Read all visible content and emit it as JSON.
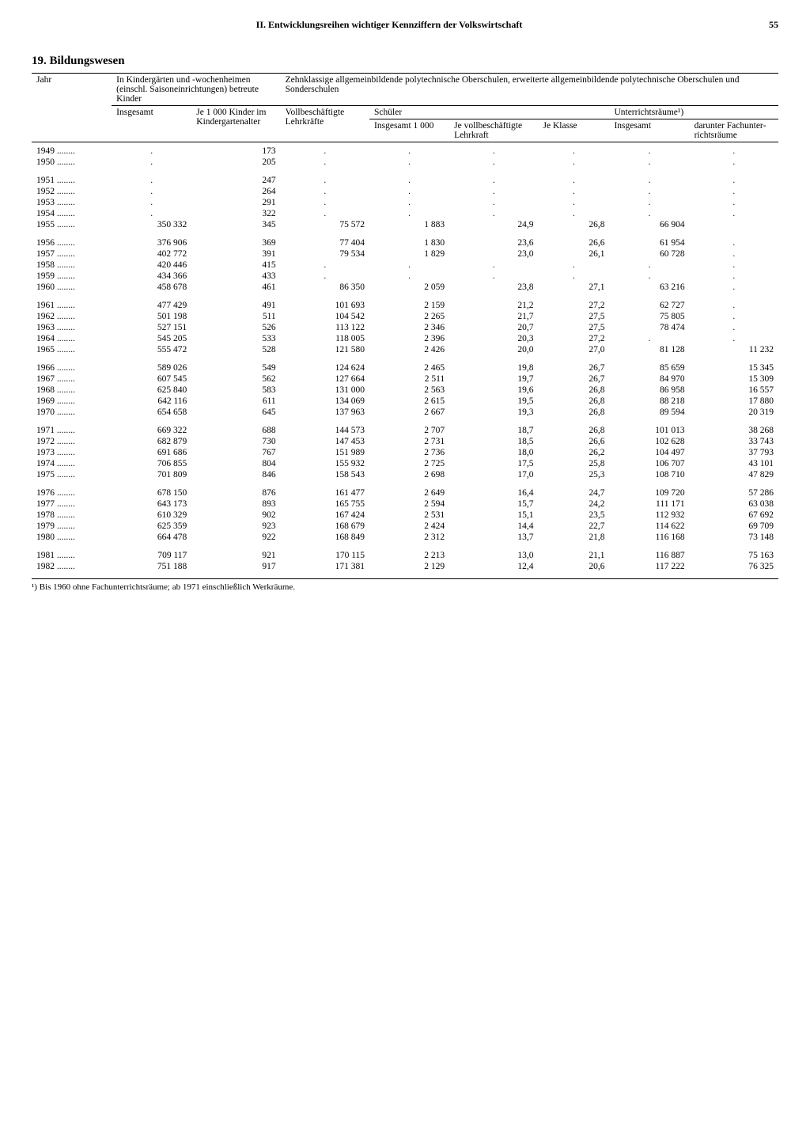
{
  "page": {
    "running_head": "II. Entwicklungsreihen wichtiger Kennziffern der Volkswirtschaft",
    "number": "55",
    "section_number": "19.",
    "section_title": "Bildungswesen",
    "footnote": "¹) Bis 1960 ohne Fachunterrichtsräume; ab 1971 einschließlich Werkräume."
  },
  "columns": {
    "year": "Jahr",
    "kindergarten_group": "In Kindergärten und -wochenheimen (einschl. Saisoneinrichtungen) betreute Kinder",
    "kg_total": "Insgesamt",
    "kg_per_1000": "Je 1 000 Kinder im Kindergarten­alter",
    "schools_group": "Zehnklassige allgemeinbildende polytechnische Oberschulen, erweiterte allgemeinbildende polytechnische Oberschulen und Sonderschulen",
    "teachers": "Voll­beschäftigte Lehrkräfte",
    "pupils_group": "Schüler",
    "pupils_total": "Insgesamt 1 000",
    "pupils_per_teacher": "Je voll­beschäftigte Lehrkraft",
    "pupils_per_class": "Je Klasse",
    "rooms_group": "Unterrichtsräume¹)",
    "rooms_total": "Insgesamt",
    "rooms_special": "darunter Fachunter­richtsräume"
  },
  "rows": [
    {
      "y": "1949",
      "c": [
        ".",
        "173",
        ".",
        ".",
        ".",
        ".",
        ".",
        "."
      ]
    },
    {
      "y": "1950",
      "c": [
        ".",
        "205",
        ".",
        ".",
        ".",
        ".",
        ".",
        "."
      ]
    },
    {
      "y": "1951",
      "c": [
        ".",
        "247",
        ".",
        ".",
        ".",
        ".",
        ".",
        "."
      ],
      "gap": true
    },
    {
      "y": "1952",
      "c": [
        ".",
        "264",
        ".",
        ".",
        ".",
        ".",
        ".",
        "."
      ]
    },
    {
      "y": "1953",
      "c": [
        ".",
        "291",
        ".",
        ".",
        ".",
        ".",
        ".",
        "."
      ]
    },
    {
      "y": "1954",
      "c": [
        ".",
        "322",
        ".",
        ".",
        ".",
        ".",
        ".",
        "."
      ]
    },
    {
      "y": "1955",
      "c": [
        "350 332",
        "345",
        "75 572",
        "1 883",
        "24,9",
        "26,8",
        "66 904",
        ""
      ]
    },
    {
      "y": "1956",
      "c": [
        "376 906",
        "369",
        "77 404",
        "1 830",
        "23,6",
        "26,6",
        "61 954",
        "."
      ],
      "gap": true
    },
    {
      "y": "1957",
      "c": [
        "402 772",
        "391",
        "79 534",
        "1 829",
        "23,0",
        "26,1",
        "60 728",
        "."
      ]
    },
    {
      "y": "1958",
      "c": [
        "420 446",
        "415",
        ".",
        ".",
        ".",
        ".",
        ".",
        "."
      ]
    },
    {
      "y": "1959",
      "c": [
        "434 366",
        "433",
        ".",
        ".",
        ".",
        ".",
        ".",
        "."
      ]
    },
    {
      "y": "1960",
      "c": [
        "458 678",
        "461",
        "86 350",
        "2 059",
        "23,8",
        "27,1",
        "63 216",
        "."
      ]
    },
    {
      "y": "1961",
      "c": [
        "477 429",
        "491",
        "101 693",
        "2 159",
        "21,2",
        "27,2",
        "62 727",
        "."
      ],
      "gap": true
    },
    {
      "y": "1962",
      "c": [
        "501 198",
        "511",
        "104 542",
        "2 265",
        "21,7",
        "27,5",
        "75 805",
        "."
      ]
    },
    {
      "y": "1963",
      "c": [
        "527 151",
        "526",
        "113 122",
        "2 346",
        "20,7",
        "27,5",
        "78 474",
        "."
      ]
    },
    {
      "y": "1964",
      "c": [
        "545 205",
        "533",
        "118 005",
        "2 396",
        "20,3",
        "27,2",
        ".",
        "."
      ]
    },
    {
      "y": "1965",
      "c": [
        "555 472",
        "528",
        "121 580",
        "2 426",
        "20,0",
        "27,0",
        "81 128",
        "11 232"
      ]
    },
    {
      "y": "1966",
      "c": [
        "589 026",
        "549",
        "124 624",
        "2 465",
        "19,8",
        "26,7",
        "85 659",
        "15 345"
      ],
      "gap": true
    },
    {
      "y": "1967",
      "c": [
        "607 545",
        "562",
        "127 664",
        "2 511",
        "19,7",
        "26,7",
        "84 970",
        "15 309"
      ]
    },
    {
      "y": "1968",
      "c": [
        "625 840",
        "583",
        "131 000",
        "2 563",
        "19,6",
        "26,8",
        "86 958",
        "16 557"
      ]
    },
    {
      "y": "1969",
      "c": [
        "642 116",
        "611",
        "134 069",
        "2 615",
        "19,5",
        "26,8",
        "88 218",
        "17 880"
      ]
    },
    {
      "y": "1970",
      "c": [
        "654 658",
        "645",
        "137 963",
        "2 667",
        "19,3",
        "26,8",
        "89 594",
        "20 319"
      ]
    },
    {
      "y": "1971",
      "c": [
        "669 322",
        "688",
        "144 573",
        "2 707",
        "18,7",
        "26,8",
        "101 013",
        "38 268"
      ],
      "gap": true
    },
    {
      "y": "1972",
      "c": [
        "682 879",
        "730",
        "147 453",
        "2 731",
        "18,5",
        "26,6",
        "102 628",
        "33 743"
      ]
    },
    {
      "y": "1973",
      "c": [
        "691 686",
        "767",
        "151 989",
        "2 736",
        "18,0",
        "26,2",
        "104 497",
        "37 793"
      ]
    },
    {
      "y": "1974",
      "c": [
        "706 855",
        "804",
        "155 932",
        "2 725",
        "17,5",
        "25,8",
        "106 707",
        "43 101"
      ]
    },
    {
      "y": "1975",
      "c": [
        "701 809",
        "846",
        "158 543",
        "2 698",
        "17,0",
        "25,3",
        "108 710",
        "47 829"
      ]
    },
    {
      "y": "1976",
      "c": [
        "678 150",
        "876",
        "161 477",
        "2 649",
        "16,4",
        "24,7",
        "109 720",
        "57 286"
      ],
      "gap": true
    },
    {
      "y": "1977",
      "c": [
        "643 173",
        "893",
        "165 755",
        "2 594",
        "15,7",
        "24,2",
        "111 171",
        "63 038"
      ]
    },
    {
      "y": "1978",
      "c": [
        "610 329",
        "902",
        "167 424",
        "2 531",
        "15,1",
        "23,5",
        "112 932",
        "67 692"
      ]
    },
    {
      "y": "1979",
      "c": [
        "625 359",
        "923",
        "168 679",
        "2 424",
        "14,4",
        "22,7",
        "114 622",
        "69 709"
      ]
    },
    {
      "y": "1980",
      "c": [
        "664 478",
        "922",
        "168 849",
        "2 312",
        "13,7",
        "21,8",
        "116 168",
        "73 148"
      ]
    },
    {
      "y": "1981",
      "c": [
        "709 117",
        "921",
        "170 115",
        "2 213",
        "13,0",
        "21,1",
        "116 887",
        "75 163"
      ],
      "gap": true
    },
    {
      "y": "1982",
      "c": [
        "751 188",
        "917",
        "171 381",
        "2 129",
        "12,4",
        "20,6",
        "117 222",
        "76 325"
      ]
    }
  ]
}
